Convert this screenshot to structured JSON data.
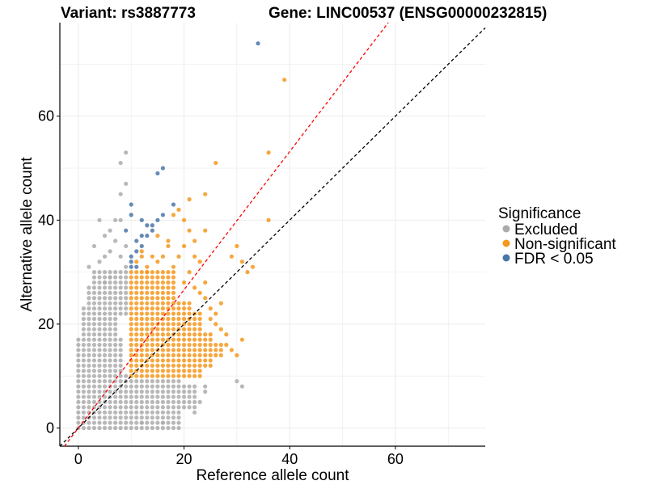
{
  "title": {
    "variant": "Variant: rs3887773",
    "gene": "Gene: LINC00537 (ENSG00000232815)"
  },
  "colors": {
    "excluded": "#ababab",
    "non_significant": "#f5981d",
    "fdr": "#4a77a6",
    "identity_line": "#000000",
    "ratio_line": "#ff0000",
    "grid": "#ebebeb"
  },
  "chart_data": {
    "type": "scatter",
    "xlabel": "Reference allele count",
    "ylabel": "Alternative allele count",
    "xlim": [
      -3.5,
      77
    ],
    "ylim": [
      -3.5,
      78
    ],
    "xticks": [
      0,
      20,
      40,
      60
    ],
    "yticks": [
      0,
      20,
      40,
      60
    ],
    "grid": true,
    "legend": {
      "title": "Significance",
      "position": "right",
      "entries": [
        {
          "label": "Excluded",
          "color_key": "excluded"
        },
        {
          "label": "Non-significant",
          "color_key": "non_significant"
        },
        {
          "label": "FDR < 0.05",
          "color_key": "fdr"
        }
      ]
    },
    "reference_lines": [
      {
        "name": "identity",
        "slope": 1.0,
        "intercept": 0,
        "style": "dashed",
        "color_key": "identity_line"
      },
      {
        "name": "ratio",
        "slope": 1.33,
        "intercept": 0,
        "style": "dashed",
        "color_key": "ratio_line"
      }
    ],
    "series": [
      {
        "name": "Excluded",
        "color_key": "excluded",
        "blocks": [
          {
            "x": [
              0,
              9
            ],
            "y": [
              0,
              10
            ]
          },
          {
            "x": [
              0,
              8
            ],
            "y": [
              11,
              17
            ]
          },
          {
            "x": [
              1,
              7
            ],
            "y": [
              18,
              21
            ]
          },
          {
            "x": [
              2,
              9
            ],
            "y": [
              22,
              27
            ]
          },
          {
            "x": [
              3,
              9
            ],
            "y": [
              28,
              30
            ]
          },
          {
            "x": [
              10,
              19
            ],
            "y": [
              0,
              9
            ]
          },
          {
            "x": [
              20,
              22
            ],
            "y": [
              4,
              8
            ]
          }
        ],
        "points": [
          [
            1,
            22
          ],
          [
            1,
            23
          ],
          [
            2,
            31
          ],
          [
            3,
            35
          ],
          [
            4,
            40
          ],
          [
            4,
            32
          ],
          [
            5,
            37
          ],
          [
            5,
            33
          ],
          [
            6,
            34
          ],
          [
            6,
            38
          ],
          [
            7,
            40
          ],
          [
            8,
            45
          ],
          [
            8,
            51
          ],
          [
            9,
            53
          ],
          [
            9,
            47
          ],
          [
            8,
            40
          ],
          [
            7,
            36
          ],
          [
            8,
            33
          ],
          [
            9,
            35
          ],
          [
            9,
            31
          ],
          [
            5,
            28
          ],
          [
            6,
            29
          ],
          [
            23,
            5
          ],
          [
            22,
            3
          ],
          [
            16,
            1
          ],
          [
            12,
            1
          ],
          [
            24,
            7
          ],
          [
            24,
            8
          ],
          [
            30,
            9
          ],
          [
            31,
            8
          ]
        ]
      },
      {
        "name": "Non-significant",
        "color_key": "non_significant",
        "blocks": [
          {
            "x": [
              10,
              21
            ],
            "y": [
              10,
              24
            ]
          },
          {
            "x": [
              10,
              18
            ],
            "y": [
              25,
              30
            ]
          },
          {
            "x": [
              22,
              23
            ],
            "y": [
              10,
              22
            ]
          },
          {
            "x": [
              24,
              25
            ],
            "y": [
              12,
              18
            ]
          },
          {
            "x": [
              26,
              27
            ],
            "y": [
              14,
              16
            ]
          }
        ],
        "points": [
          [
            11,
            32
          ],
          [
            12,
            33
          ],
          [
            13,
            31
          ],
          [
            14,
            33
          ],
          [
            15,
            32
          ],
          [
            16,
            33
          ],
          [
            17,
            35
          ],
          [
            18,
            31
          ],
          [
            19,
            33
          ],
          [
            20,
            35
          ],
          [
            21,
            38
          ],
          [
            22,
            33
          ],
          [
            23,
            32
          ],
          [
            21,
            30
          ],
          [
            20,
            28
          ],
          [
            22,
            27
          ],
          [
            23,
            26
          ],
          [
            24,
            28
          ],
          [
            24,
            25
          ],
          [
            25,
            23
          ],
          [
            26,
            22
          ],
          [
            25,
            21
          ],
          [
            27,
            19
          ],
          [
            28,
            16
          ],
          [
            29,
            15
          ],
          [
            28,
            18
          ],
          [
            27,
            24
          ],
          [
            26,
            20
          ],
          [
            30,
            14
          ],
          [
            31,
            17
          ],
          [
            32,
            30
          ],
          [
            33,
            31
          ],
          [
            31,
            32
          ],
          [
            29,
            33
          ],
          [
            30,
            35
          ],
          [
            24,
            38
          ],
          [
            21,
            44
          ],
          [
            24,
            45
          ],
          [
            26,
            51
          ],
          [
            36,
            53
          ],
          [
            36,
            40
          ],
          [
            39,
            67
          ],
          [
            18,
            41
          ],
          [
            19,
            42
          ],
          [
            20,
            40
          ],
          [
            22,
            36
          ],
          [
            15,
            37
          ],
          [
            17,
            36
          ],
          [
            13,
            30
          ],
          [
            12,
            34
          ]
        ]
      },
      {
        "name": "FDR < 0.05",
        "color_key": "fdr",
        "points": [
          [
            34,
            74
          ],
          [
            15,
            49
          ],
          [
            16,
            50
          ],
          [
            10,
            43
          ],
          [
            10,
            41
          ],
          [
            12,
            40
          ],
          [
            13,
            39
          ],
          [
            14,
            39
          ],
          [
            14,
            38
          ],
          [
            13,
            37
          ],
          [
            12,
            37
          ],
          [
            12,
            35
          ],
          [
            11,
            34
          ],
          [
            11,
            36
          ],
          [
            10,
            33
          ],
          [
            10,
            32
          ],
          [
            10,
            31
          ],
          [
            11,
            31
          ],
          [
            16,
            41
          ],
          [
            18,
            43
          ],
          [
            9,
            38
          ],
          [
            15,
            40
          ]
        ]
      }
    ]
  }
}
